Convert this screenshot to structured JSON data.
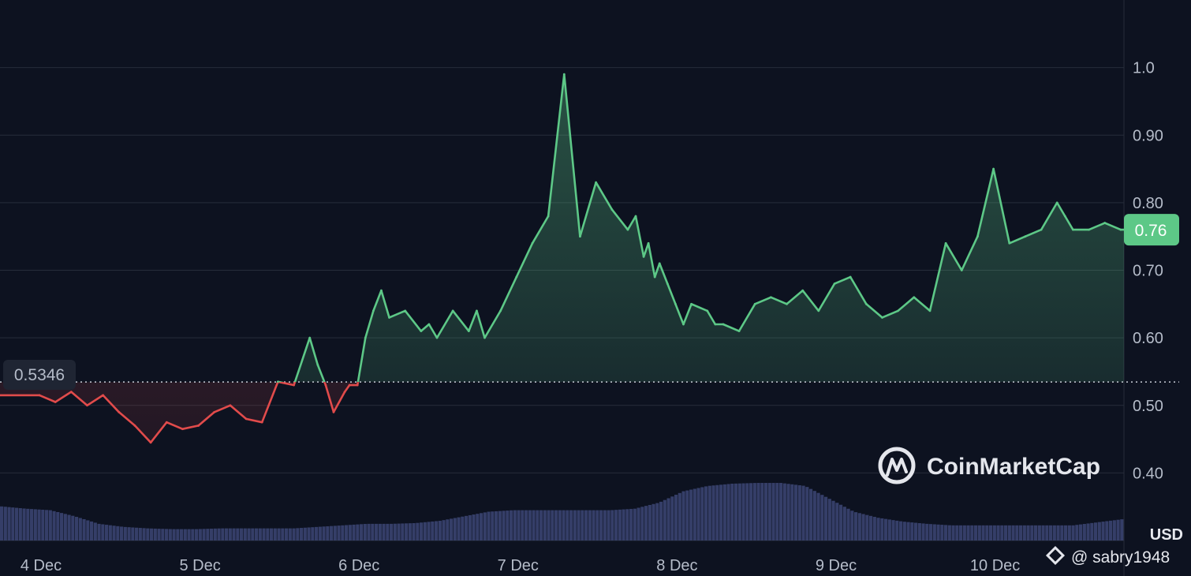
{
  "chart_data": {
    "type": "line",
    "unit": "USD",
    "y_ticks": [
      "1.0",
      "0.90",
      "0.80",
      "0.70",
      "0.60",
      "0.50",
      "0.40"
    ],
    "x_ticks": [
      "4 Dec",
      "5 Dec",
      "6 Dec",
      "7 Dec",
      "8 Dec",
      "9 Dec",
      "10 Dec"
    ],
    "ylim": [
      0.3,
      1.1
    ],
    "reference_price": 0.5346,
    "reference_label": "0.5346",
    "current_price_label": "0.76",
    "colors": {
      "up": "#5dc887",
      "down": "#e14b4b",
      "volume": "#3a4470",
      "background": "#0d1220"
    },
    "grid": true,
    "series": [
      {
        "x": [
          4.0,
          4.1,
          4.2,
          4.3,
          4.4,
          4.5,
          4.6,
          4.7,
          4.8,
          4.9,
          5.0,
          5.1,
          5.2,
          5.3,
          5.4,
          5.5,
          5.6,
          5.7,
          5.75,
          5.8,
          5.85,
          5.92,
          5.95,
          6.0,
          6.05,
          6.1,
          6.15,
          6.2,
          6.3,
          6.4,
          6.45,
          6.5,
          6.6,
          6.7,
          6.75,
          6.8,
          6.9,
          7.0,
          7.1,
          7.2,
          7.3,
          7.4,
          7.5,
          7.6,
          7.7,
          7.75,
          7.8,
          7.83,
          7.87,
          7.9,
          7.95,
          8.0,
          8.05,
          8.1,
          8.2,
          8.25,
          8.3,
          8.4,
          8.5,
          8.6,
          8.7,
          8.8,
          8.9,
          9.0,
          9.1,
          9.2,
          9.3,
          9.4,
          9.5,
          9.6,
          9.7,
          9.8,
          9.9,
          10.0,
          10.1,
          10.2,
          10.3,
          10.4,
          10.45,
          10.5,
          10.6,
          10.7,
          10.8
        ],
        "values": [
          0.515,
          0.505,
          0.52,
          0.5,
          0.515,
          0.49,
          0.47,
          0.445,
          0.475,
          0.465,
          0.47,
          0.49,
          0.5,
          0.48,
          0.475,
          0.535,
          0.53,
          0.6,
          0.56,
          0.53,
          0.49,
          0.52,
          0.53,
          0.53,
          0.6,
          0.64,
          0.67,
          0.63,
          0.64,
          0.61,
          0.62,
          0.6,
          0.64,
          0.61,
          0.64,
          0.6,
          0.64,
          0.69,
          0.74,
          0.78,
          0.99,
          0.75,
          0.83,
          0.79,
          0.76,
          0.78,
          0.72,
          0.74,
          0.69,
          0.71,
          0.68,
          0.65,
          0.62,
          0.65,
          0.64,
          0.62,
          0.62,
          0.61,
          0.65,
          0.66,
          0.65,
          0.67,
          0.64,
          0.68,
          0.69,
          0.65,
          0.63,
          0.64,
          0.66,
          0.64,
          0.74,
          0.7,
          0.75,
          0.85,
          0.74,
          0.75,
          0.76,
          0.8,
          0.78,
          0.76,
          0.76,
          0.77,
          0.76
        ]
      }
    ],
    "volume_relative": [
      0.45,
      0.42,
      0.4,
      0.32,
      0.22,
      0.18,
      0.16,
      0.15,
      0.15,
      0.16,
      0.16,
      0.16,
      0.16,
      0.18,
      0.2,
      0.22,
      0.22,
      0.23,
      0.26,
      0.32,
      0.38,
      0.4,
      0.4,
      0.4,
      0.4,
      0.4,
      0.42,
      0.5,
      0.65,
      0.72,
      0.75,
      0.76,
      0.76,
      0.72,
      0.55,
      0.38,
      0.3,
      0.25,
      0.22,
      0.2,
      0.2,
      0.2,
      0.2,
      0.2,
      0.2,
      0.24,
      0.28
    ]
  },
  "watermark": {
    "brand": "CoinMarketCap",
    "user": "@ sabry1948"
  }
}
